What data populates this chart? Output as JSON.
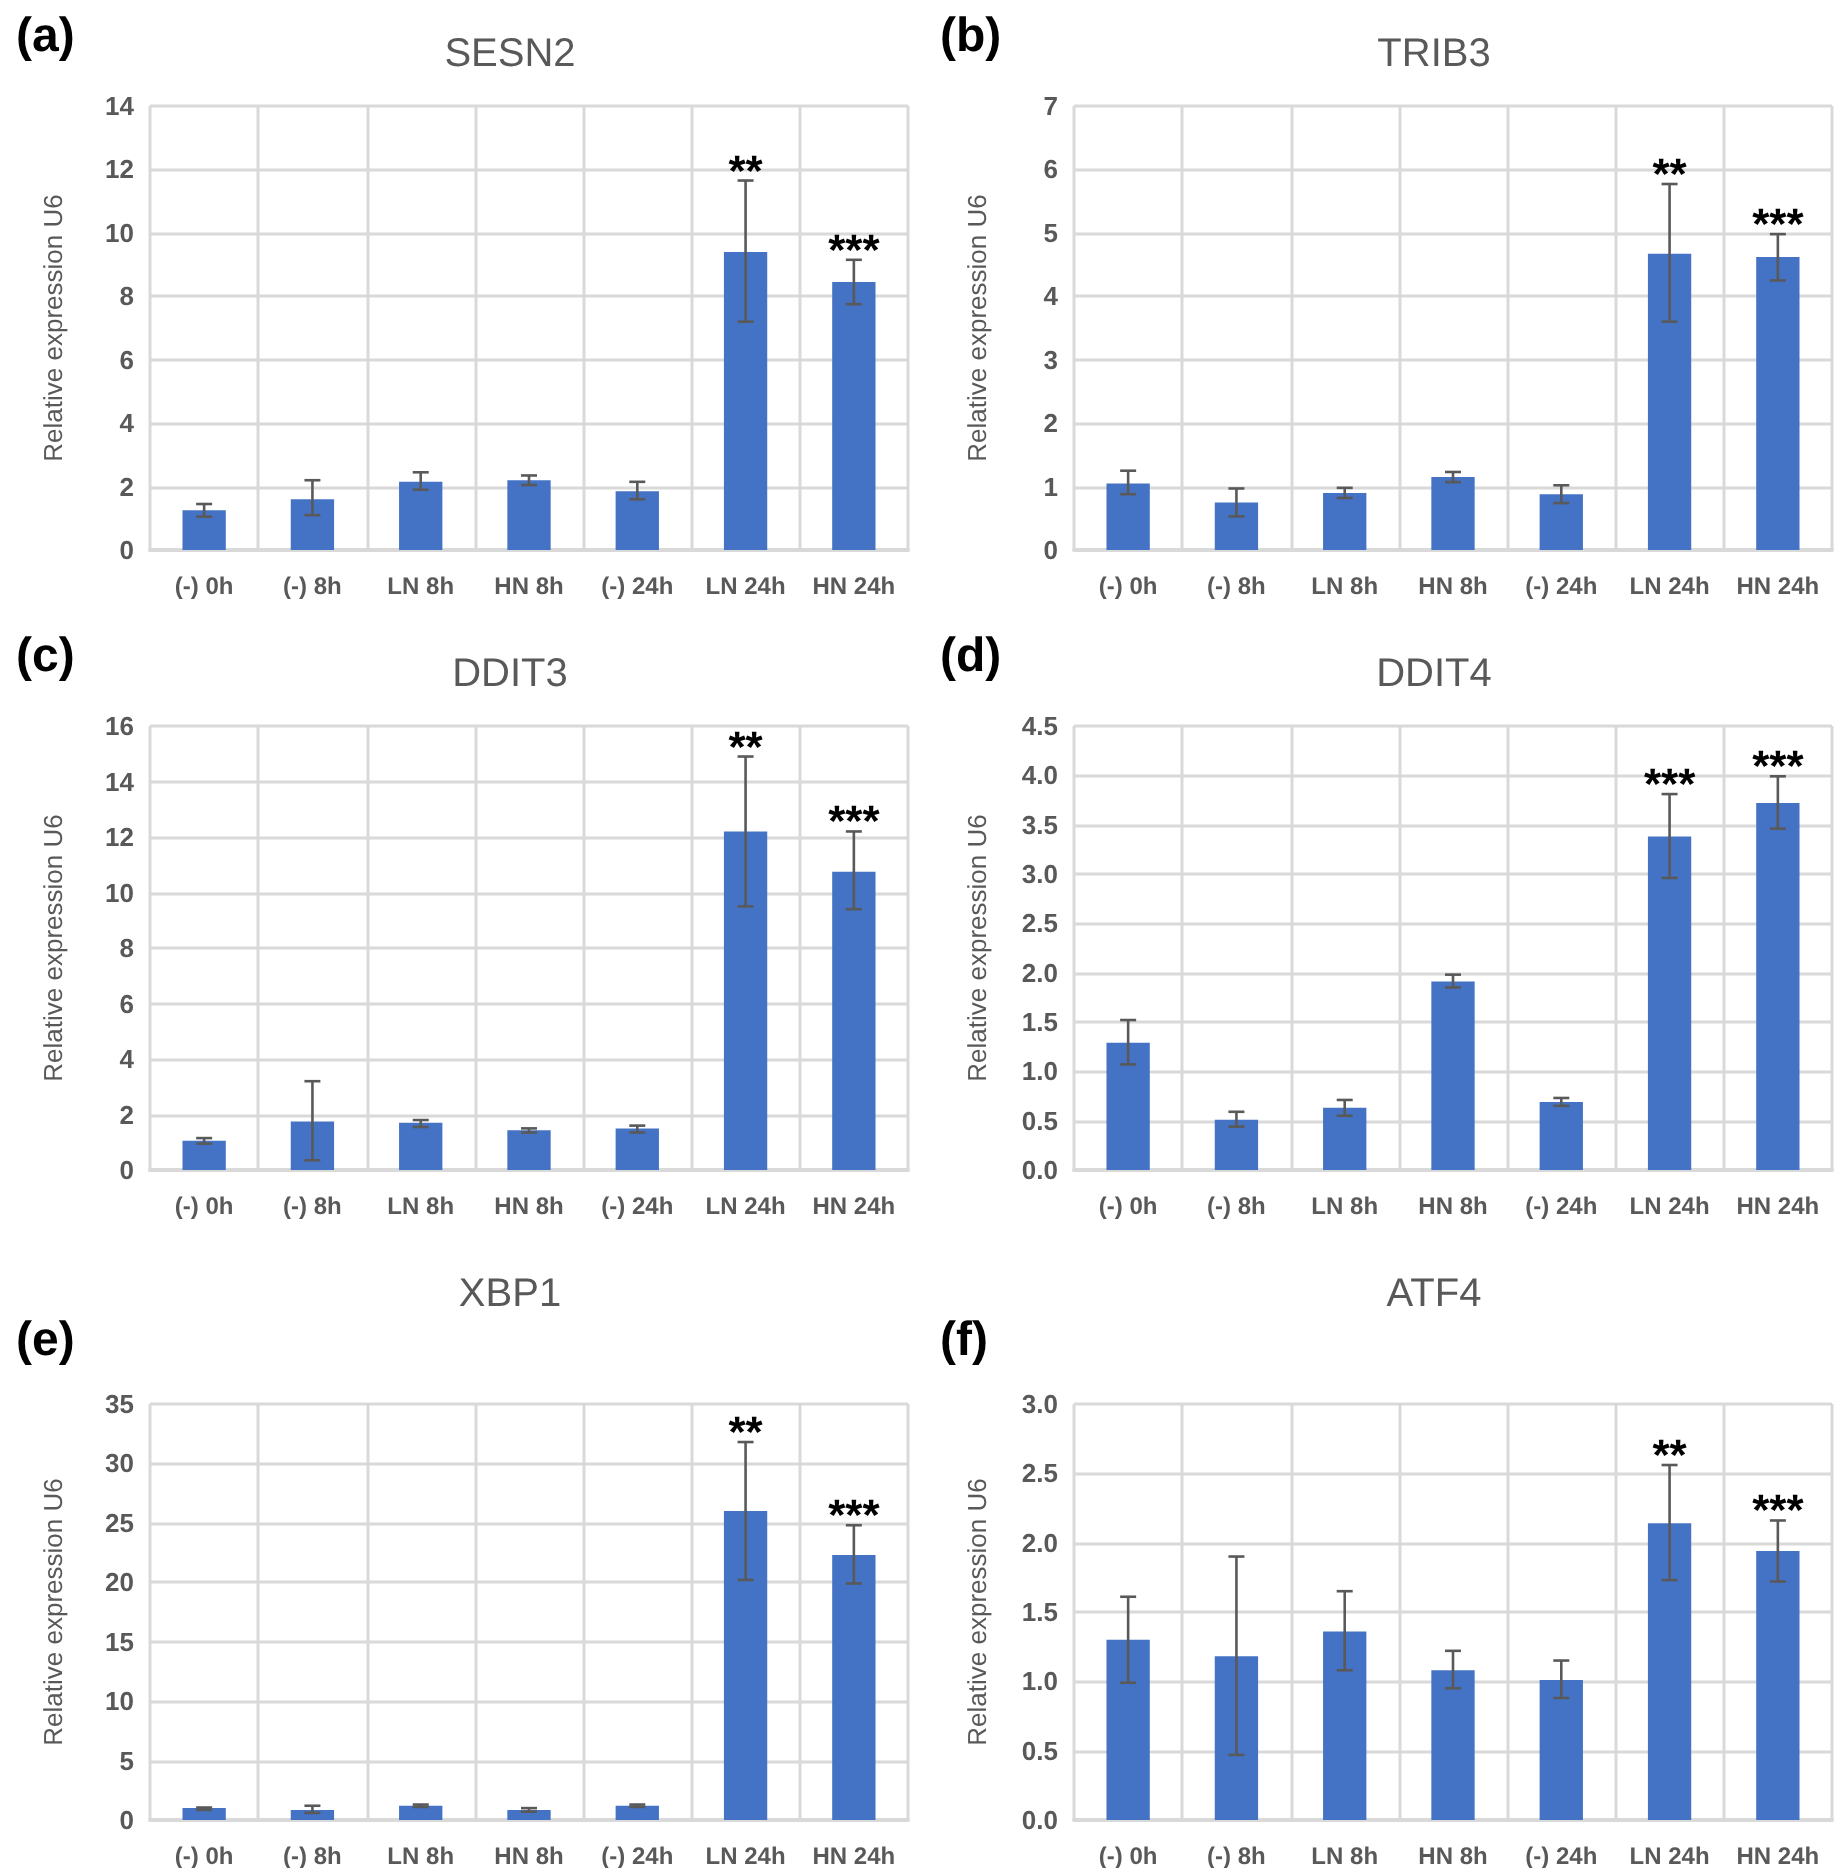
{
  "chart_data": [
    {
      "type": "bar",
      "title": "SESN2",
      "annotations": [
        "(a)",
        {
          "text": "**",
          "x": "LN 24h",
          "y": 11.65
        },
        {
          "text": "***",
          "x": "HN 24h",
          "y": 9.15
        }
      ],
      "ylabel": "Relative expression U6",
      "categories": [
        "(-) 0h",
        "(-) 8h",
        "LN 8h",
        "HN 8h",
        "(-) 24h",
        "LN 24h",
        "HN 24h"
      ],
      "color": "#4472c4",
      "values": [
        1.25,
        1.6,
        2.15,
        2.2,
        1.85,
        9.4,
        8.45
      ],
      "errors": [
        [
          1.05,
          1.45
        ],
        [
          1.1,
          2.2
        ],
        [
          1.9,
          2.45
        ],
        [
          2.05,
          2.35
        ],
        [
          1.6,
          2.15
        ],
        [
          7.2,
          11.65
        ],
        [
          7.75,
          9.15
        ]
      ],
      "ylim": [
        0,
        14
      ],
      "yticks": [
        0,
        2,
        4,
        6,
        8,
        10,
        12,
        14
      ],
      "grid": true
    },
    {
      "type": "bar",
      "title": "TRIB3",
      "annotations": [
        "(b)",
        {
          "text": "**",
          "x": "LN 24h",
          "y": 5.77
        },
        {
          "text": "***",
          "x": "HN 24h",
          "y": 4.98
        }
      ],
      "ylabel": "Relative expression U6",
      "categories": [
        "(-) 0h",
        "(-) 8h",
        "LN 8h",
        "HN 8h",
        "(-) 24h",
        "LN 24h",
        "HN 24h"
      ],
      "color": "#4472c4",
      "values": [
        1.05,
        0.75,
        0.9,
        1.15,
        0.88,
        4.67,
        4.62
      ],
      "errors": [
        [
          0.88,
          1.25
        ],
        [
          0.53,
          0.97
        ],
        [
          0.82,
          0.98
        ],
        [
          1.07,
          1.23
        ],
        [
          0.74,
          1.02
        ],
        [
          3.6,
          5.77
        ],
        [
          4.25,
          4.98
        ]
      ],
      "ylim": [
        0,
        7
      ],
      "yticks": [
        0,
        1,
        2,
        3,
        4,
        5,
        6,
        7
      ],
      "grid": true
    },
    {
      "type": "bar",
      "title": "DDIT3",
      "annotations": [
        "(c)",
        {
          "text": "**",
          "x": "LN 24h",
          "y": 14.9
        },
        {
          "text": "***",
          "x": "HN 24h",
          "y": 12.2
        }
      ],
      "ylabel": "Relative expression U6",
      "categories": [
        "(-) 0h",
        "(-) 8h",
        "LN 8h",
        "HN 8h",
        "(-) 24h",
        "LN 24h",
        "HN 24h"
      ],
      "color": "#4472c4",
      "values": [
        1.05,
        1.75,
        1.7,
        1.43,
        1.5,
        12.2,
        10.75
      ],
      "errors": [
        [
          0.95,
          1.15
        ],
        [
          0.35,
          3.2
        ],
        [
          1.55,
          1.8
        ],
        [
          1.35,
          1.5
        ],
        [
          1.35,
          1.6
        ],
        [
          9.5,
          14.9
        ],
        [
          9.4,
          12.2
        ]
      ],
      "ylim": [
        0,
        16
      ],
      "yticks": [
        0,
        2,
        4,
        6,
        8,
        10,
        12,
        14,
        16
      ],
      "grid": true
    },
    {
      "type": "bar",
      "title": "DDIT4",
      "annotations": [
        "(d)",
        {
          "text": "***",
          "x": "LN 24h",
          "y": 3.81
        },
        {
          "text": "***",
          "x": "HN 24h",
          "y": 3.99
        }
      ],
      "ylabel": "Relative expression U6",
      "categories": [
        "(-) 0h",
        "(-) 8h",
        "LN 8h",
        "HN 8h",
        "(-) 24h",
        "LN 24h",
        "HN 24h"
      ],
      "color": "#4472c4",
      "values": [
        1.29,
        0.51,
        0.63,
        1.91,
        0.69,
        3.38,
        3.72
      ],
      "errors": [
        [
          1.07,
          1.52
        ],
        [
          0.44,
          0.59
        ],
        [
          0.55,
          0.71
        ],
        [
          1.85,
          1.98
        ],
        [
          0.65,
          0.73
        ],
        [
          2.96,
          3.81
        ],
        [
          3.46,
          3.99
        ]
      ],
      "ylim": [
        0,
        4.5
      ],
      "yticks": [
        {
          "value": 0,
          "label": "0.0"
        },
        {
          "value": 0.5,
          "label": "0.5"
        },
        {
          "value": 1,
          "label": "1.0"
        },
        {
          "value": 1.5,
          "label": "1.5"
        },
        {
          "value": 2,
          "label": "2.0"
        },
        {
          "value": 2.5,
          "label": "2.5"
        },
        {
          "value": 3,
          "label": "3.0"
        },
        {
          "value": 3.5,
          "label": "3.5"
        },
        {
          "value": 4,
          "label": "4.0"
        },
        {
          "value": 4.5,
          "label": "4.5"
        }
      ],
      "grid": true
    },
    {
      "type": "bar",
      "title": "XBP1",
      "annotations": [
        "(e)",
        {
          "text": "**",
          "x": "LN 24h",
          "y": 31.8
        },
        {
          "text": "***",
          "x": "HN 24h",
          "y": 24.8
        }
      ],
      "ylabel": "Relative expression U6",
      "categories": [
        "(-) 0h",
        "(-) 8h",
        "LN 8h",
        "HN 8h",
        "(-) 24h",
        "LN 24h",
        "HN 24h"
      ],
      "color": "#4472c4",
      "values": [
        1.0,
        0.85,
        1.2,
        0.85,
        1.2,
        26.0,
        22.3
      ],
      "errors": [
        [
          0.85,
          1.05
        ],
        [
          0.6,
          1.2
        ],
        [
          1.1,
          1.3
        ],
        [
          0.7,
          1.0
        ],
        [
          1.1,
          1.3
        ],
        [
          20.2,
          31.8
        ],
        [
          19.9,
          24.8
        ]
      ],
      "ylim": [
        0,
        35
      ],
      "yticks": [
        0,
        5,
        10,
        15,
        20,
        25,
        30,
        35
      ],
      "grid": true
    },
    {
      "type": "bar",
      "title": "ATF4",
      "annotations": [
        "(f)",
        {
          "text": "**",
          "x": "LN 24h",
          "y": 2.56
        },
        {
          "text": "***",
          "x": "HN 24h",
          "y": 2.16
        }
      ],
      "ylabel": "Relative expression U6",
      "categories": [
        "(-) 0h",
        "(-) 8h",
        "LN 8h",
        "HN 8h",
        "(-) 24h",
        "LN 24h",
        "HN 24h"
      ],
      "color": "#4472c4",
      "values": [
        1.3,
        1.18,
        1.36,
        1.08,
        1.01,
        2.14,
        1.94
      ],
      "errors": [
        [
          0.99,
          1.61
        ],
        [
          0.47,
          1.9
        ],
        [
          1.08,
          1.65
        ],
        [
          0.95,
          1.22
        ],
        [
          0.88,
          1.15
        ],
        [
          1.73,
          2.56
        ],
        [
          1.72,
          2.16
        ]
      ],
      "ylim": [
        0,
        3
      ],
      "yticks": [
        {
          "value": 0,
          "label": "0.0"
        },
        {
          "value": 0.5,
          "label": "0.5"
        },
        {
          "value": 1,
          "label": "1.0"
        },
        {
          "value": 1.5,
          "label": "1.5"
        },
        {
          "value": 2,
          "label": "2.0"
        },
        {
          "value": 2.5,
          "label": "2.5"
        },
        {
          "value": 3,
          "label": "3.0"
        }
      ],
      "grid": true
    }
  ]
}
